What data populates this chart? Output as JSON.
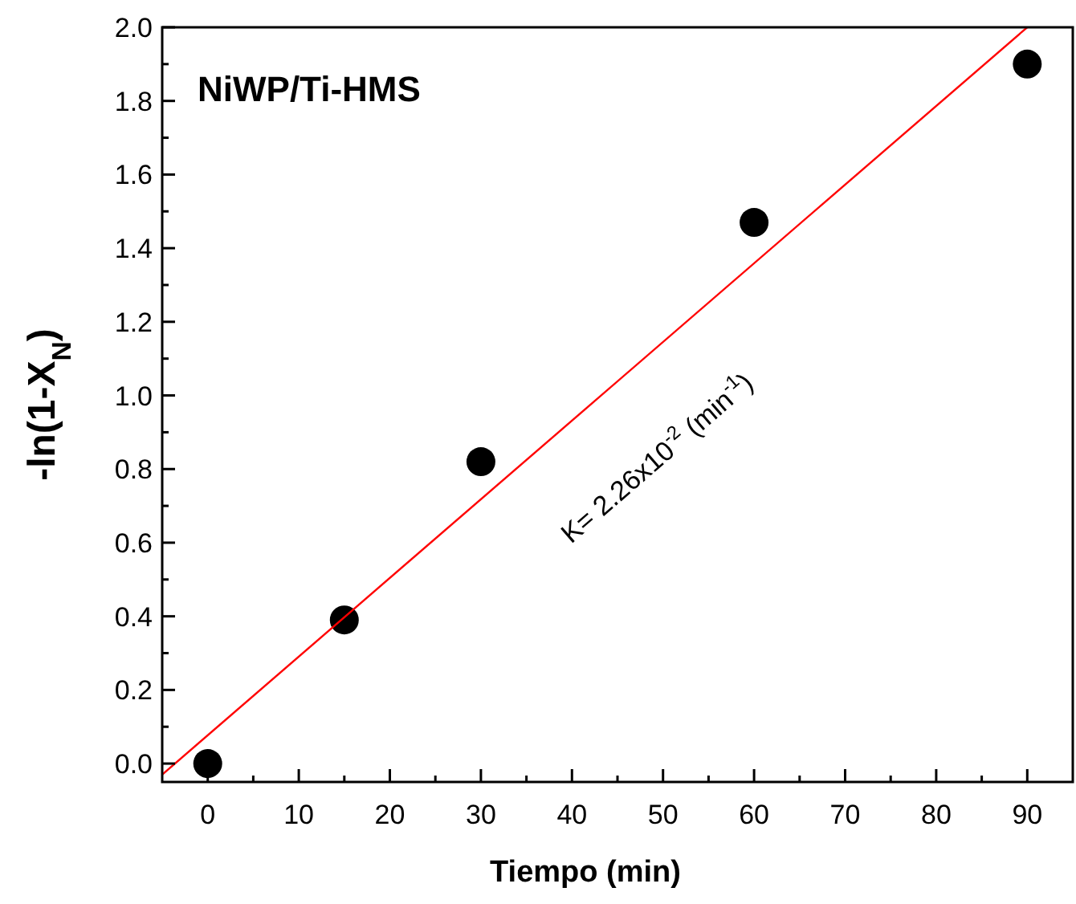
{
  "chart_data": {
    "type": "scatter",
    "title": "NiWP/Ti-HMS",
    "xlabel": "Tiempo (min)",
    "ylabel": "-ln(1-X$_{N}$)",
    "xlim": [
      -5,
      95
    ],
    "ylim": [
      -0.05,
      2.0
    ],
    "xticks": [
      0,
      {
        "value": 5,
        "label": null
      },
      10,
      {
        "value": 15,
        "label": null
      },
      20,
      {
        "value": 25,
        "label": null
      },
      30,
      {
        "value": 35,
        "label": null
      },
      40,
      {
        "value": 45,
        "label": null
      },
      50,
      {
        "value": 55,
        "label": null
      },
      60,
      {
        "value": 65,
        "label": null
      },
      70,
      {
        "value": 75,
        "label": null
      },
      80,
      {
        "value": 85,
        "label": null
      },
      90
    ],
    "yticks": [
      {
        "value": 0,
        "label": "0.0"
      },
      {
        "value": 0.1,
        "label": null
      },
      0.2,
      {
        "value": 0.3,
        "label": null
      },
      0.4,
      {
        "value": 0.5,
        "label": null
      },
      0.6,
      {
        "value": 0.7,
        "label": null
      },
      0.8,
      {
        "value": 0.9,
        "label": null
      },
      {
        "value": 1,
        "label": "1.0"
      },
      {
        "value": 1.1,
        "label": null
      },
      1.2,
      {
        "value": 1.3,
        "label": null
      },
      1.4,
      {
        "value": 1.5,
        "label": null
      },
      1.6,
      {
        "value": 1.7,
        "label": null
      },
      1.8,
      {
        "value": 1.9,
        "label": null
      },
      {
        "value": 2,
        "label": "2.0"
      }
    ],
    "grid": false,
    "series": [
      {
        "marker": "circle",
        "color": "#000000",
        "x": [
          0,
          15,
          30,
          60,
          90
        ],
        "values": [
          0,
          0.39,
          0.82,
          1.47,
          1.9
        ]
      },
      {
        "type": "line",
        "marker": "none",
        "color": "#ff0000",
        "x": [
          -5,
          90
        ],
        "values": [
          -0.03,
          2.0
        ]
      }
    ],
    "annotations": [
      "K= 2.26x10$^{-2}$  (min$^{-1}$)"
    ]
  }
}
